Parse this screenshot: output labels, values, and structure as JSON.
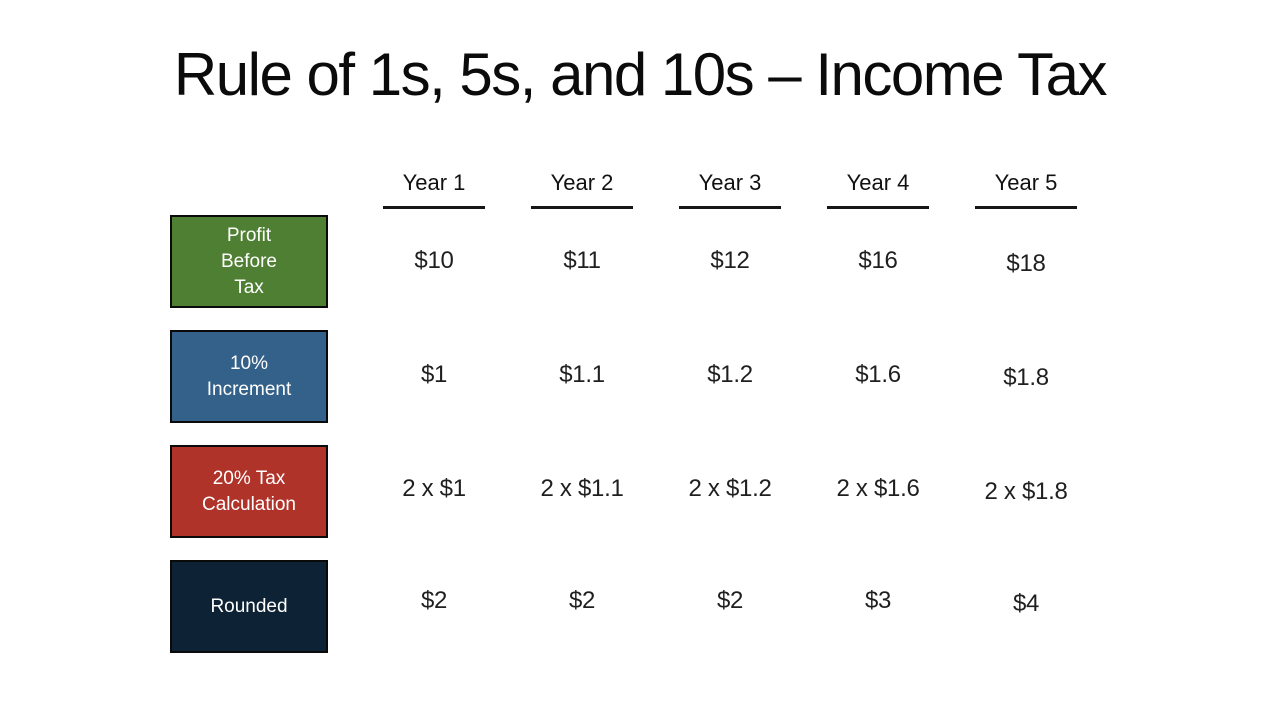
{
  "slide": {
    "title": "Rule of 1s, 5s, and 10s – Income Tax",
    "colors": {
      "profit_before_tax_box": "#4f7f33",
      "increment_box": "#336189",
      "tax_calculation_box": "#b0332a",
      "rounded_box": "#0d2234",
      "box_border": "#0a0a0a",
      "box_text": "#ffffff",
      "body_text": "#1f1f1f",
      "background": "#ffffff"
    },
    "table": {
      "columns": [
        "Year 1",
        "Year 2",
        "Year 3",
        "Year 4",
        "Year 5"
      ],
      "rows": [
        {
          "label": "Profit\nBefore\nTax",
          "values": [
            "$10",
            "$11",
            "$12",
            "$16",
            "$18"
          ]
        },
        {
          "label": "10%\nIncrement",
          "values": [
            "$1",
            "$1.1",
            "$1.2",
            "$1.6",
            "$1.8"
          ]
        },
        {
          "label": "20% Tax\nCalculation",
          "values": [
            "2 x $1",
            "2 x $1.1",
            "2 x $1.2",
            "2 x $1.6",
            "2 x $1.8"
          ]
        },
        {
          "label": "Rounded",
          "values": [
            "$2",
            "$2",
            "$2",
            "$3",
            "$4"
          ]
        }
      ]
    }
  }
}
